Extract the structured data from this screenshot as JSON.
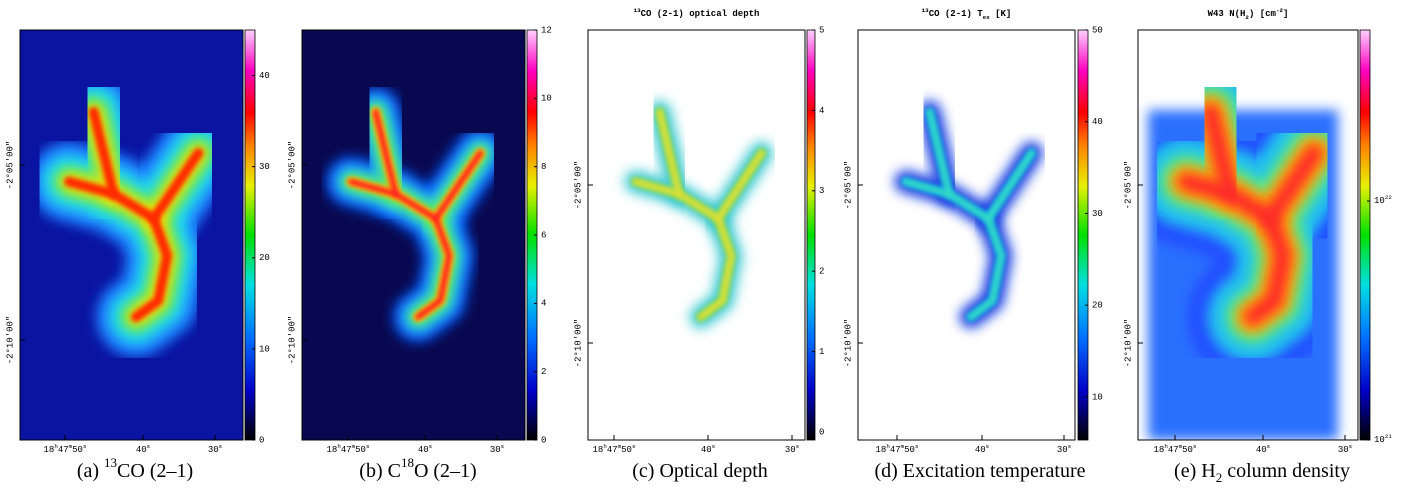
{
  "panels": [
    {
      "caption": [
        {
          "text": "(a) "
        },
        {
          "sup": "13"
        },
        {
          "text": "CO (2–1)"
        }
      ],
      "colorbar": {
        "range": [
          0,
          45
        ],
        "ticks": [
          0,
          10,
          20,
          30,
          40
        ]
      },
      "xticks": [
        [
          {
            "text": "18"
          },
          {
            "sup": "h"
          },
          {
            "text": "47"
          },
          {
            "sup": "m"
          },
          {
            "text": "50"
          },
          {
            "sup": "s"
          }
        ],
        [
          {
            "text": "40"
          },
          {
            "sup": "s"
          }
        ],
        [
          {
            "text": "30"
          },
          {
            "sup": "s"
          }
        ]
      ],
      "yticks": [
        "-2°05′00″",
        "-2°10′00″"
      ]
    },
    {
      "caption": [
        {
          "text": "(b) C"
        },
        {
          "sup": "18"
        },
        {
          "text": "O (2–1)"
        }
      ],
      "colorbar": {
        "range": [
          0,
          12
        ],
        "ticks": [
          0,
          2,
          4,
          6,
          8,
          10,
          12
        ]
      },
      "xticks": [
        [
          {
            "text": "18"
          },
          {
            "sup": "h"
          },
          {
            "text": "47"
          },
          {
            "sup": "m"
          },
          {
            "text": "50"
          },
          {
            "sup": "s"
          }
        ],
        [
          {
            "text": "40"
          },
          {
            "sup": "s"
          }
        ],
        [
          {
            "text": "30"
          },
          {
            "sup": "s"
          }
        ]
      ],
      "yticks": [
        "-2°05′00″",
        "-2°10′00″"
      ]
    },
    {
      "title": [
        {
          "sup": "13"
        },
        {
          "text": "CO (2-1) optical depth"
        }
      ],
      "caption": [
        {
          "text": "(c) Optical depth"
        }
      ],
      "colorbar": {
        "range": [
          -0.1,
          5
        ],
        "ticks": [
          0,
          1,
          2,
          3,
          4,
          5
        ]
      },
      "xticks": [
        [
          {
            "text": "18"
          },
          {
            "sup": "h"
          },
          {
            "text": "47"
          },
          {
            "sup": "m"
          },
          {
            "text": "50"
          },
          {
            "sup": "s"
          }
        ],
        [
          {
            "text": "40"
          },
          {
            "sup": "s"
          }
        ],
        [
          {
            "text": "30"
          },
          {
            "sup": "s"
          }
        ]
      ],
      "yticks": [
        "-2°05′00″",
        "-2°10′00″"
      ]
    },
    {
      "title": [
        {
          "sup": "13"
        },
        {
          "text": "CO (2-1) T"
        },
        {
          "sub": "ex"
        },
        {
          "text": " [K]"
        }
      ],
      "caption": [
        {
          "text": "(d) Excitation temperature"
        }
      ],
      "colorbar": {
        "range": [
          5.3,
          50
        ],
        "ticks": [
          10,
          20,
          30,
          40,
          50
        ]
      },
      "xticks": [
        [
          {
            "text": "18"
          },
          {
            "sup": "h"
          },
          {
            "text": "47"
          },
          {
            "sup": "m"
          },
          {
            "text": "50"
          },
          {
            "sup": "s"
          }
        ],
        [
          {
            "text": "40"
          },
          {
            "sup": "s"
          }
        ],
        [
          {
            "text": "30"
          },
          {
            "sup": "s"
          }
        ]
      ],
      "yticks": [
        "-2°05′00″",
        "-2°10′00″"
      ]
    },
    {
      "title": [
        {
          "text": "W43 N(H"
        },
        {
          "sub": "2"
        },
        {
          "text": ") [cm"
        },
        {
          "sup": "-2"
        },
        {
          "text": "]"
        }
      ],
      "caption": [
        {
          "text": "(e) H"
        },
        {
          "sub": "2"
        },
        {
          "text": " column density"
        }
      ],
      "colorbar": {
        "range": [
          1e+21,
          5.2e+22
        ],
        "log": true,
        "ticks": [
          {
            "value": 1e+21,
            "label": [
              {
                "text": "10"
              },
              {
                "sup": "21"
              }
            ]
          },
          {
            "value": 1e+22,
            "label": [
              {
                "text": "10"
              },
              {
                "sup": "22"
              }
            ]
          }
        ]
      },
      "xticks": [
        [
          {
            "text": "18"
          },
          {
            "sup": "h"
          },
          {
            "text": "47"
          },
          {
            "sup": "m"
          },
          {
            "text": "50"
          },
          {
            "sup": "s"
          }
        ],
        [
          {
            "text": "40"
          },
          {
            "sup": "s"
          }
        ],
        [
          {
            "text": "30"
          },
          {
            "sup": "s"
          }
        ]
      ],
      "yticks": [
        "-2°05′00″",
        "-2°10′00″"
      ]
    }
  ]
}
